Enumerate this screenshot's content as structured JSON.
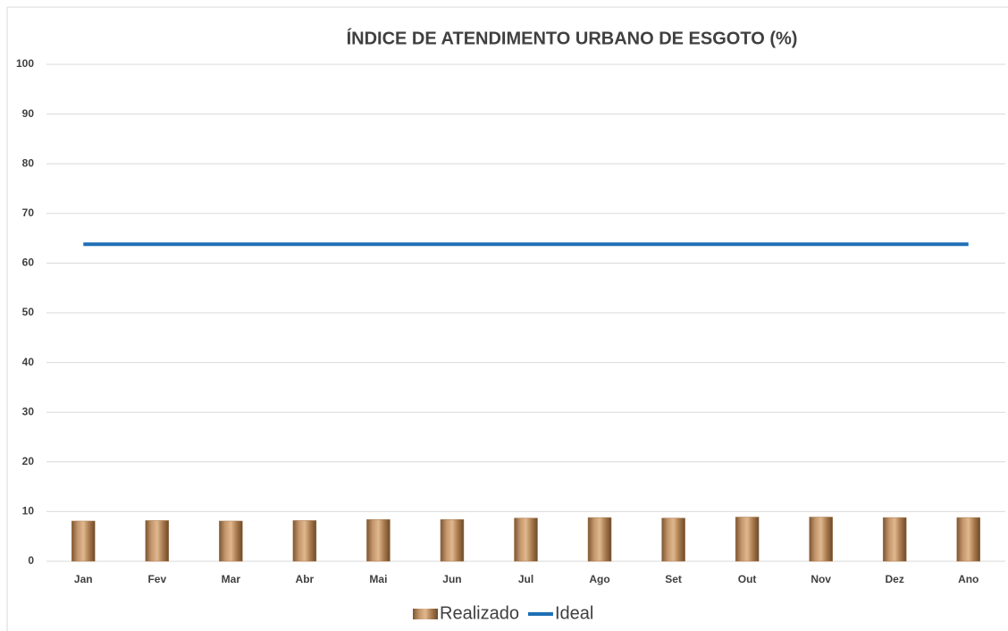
{
  "chart_data": {
    "type": "combo",
    "title": "ÍNDICE DE ATENDIMENTO URBANO DE ESGOTO (%)",
    "categories": [
      "Jan",
      "Fev",
      "Mar",
      "Abr",
      "Mai",
      "Jun",
      "Jul",
      "Ago",
      "Set",
      "Out",
      "Nov",
      "Dez",
      "Ano"
    ],
    "series": [
      {
        "name": "Realizado",
        "type": "bar",
        "color": "#a8794c",
        "values": [
          8.1,
          8.2,
          8.1,
          8.2,
          8.4,
          8.4,
          8.7,
          8.8,
          8.7,
          8.9,
          8.9,
          8.8,
          8.8
        ]
      },
      {
        "name": "Ideal",
        "type": "line",
        "color": "#1f6fb5",
        "values": [
          63.8,
          63.8,
          63.8,
          63.8,
          63.8,
          63.8,
          63.8,
          63.8,
          63.8,
          63.8,
          63.8,
          63.8,
          63.8
        ]
      }
    ],
    "ylim": [
      0,
      100
    ],
    "yticks": [
      0,
      10,
      20,
      30,
      40,
      50,
      60,
      70,
      80,
      90,
      100
    ],
    "grid": true,
    "legend": "bottom"
  }
}
